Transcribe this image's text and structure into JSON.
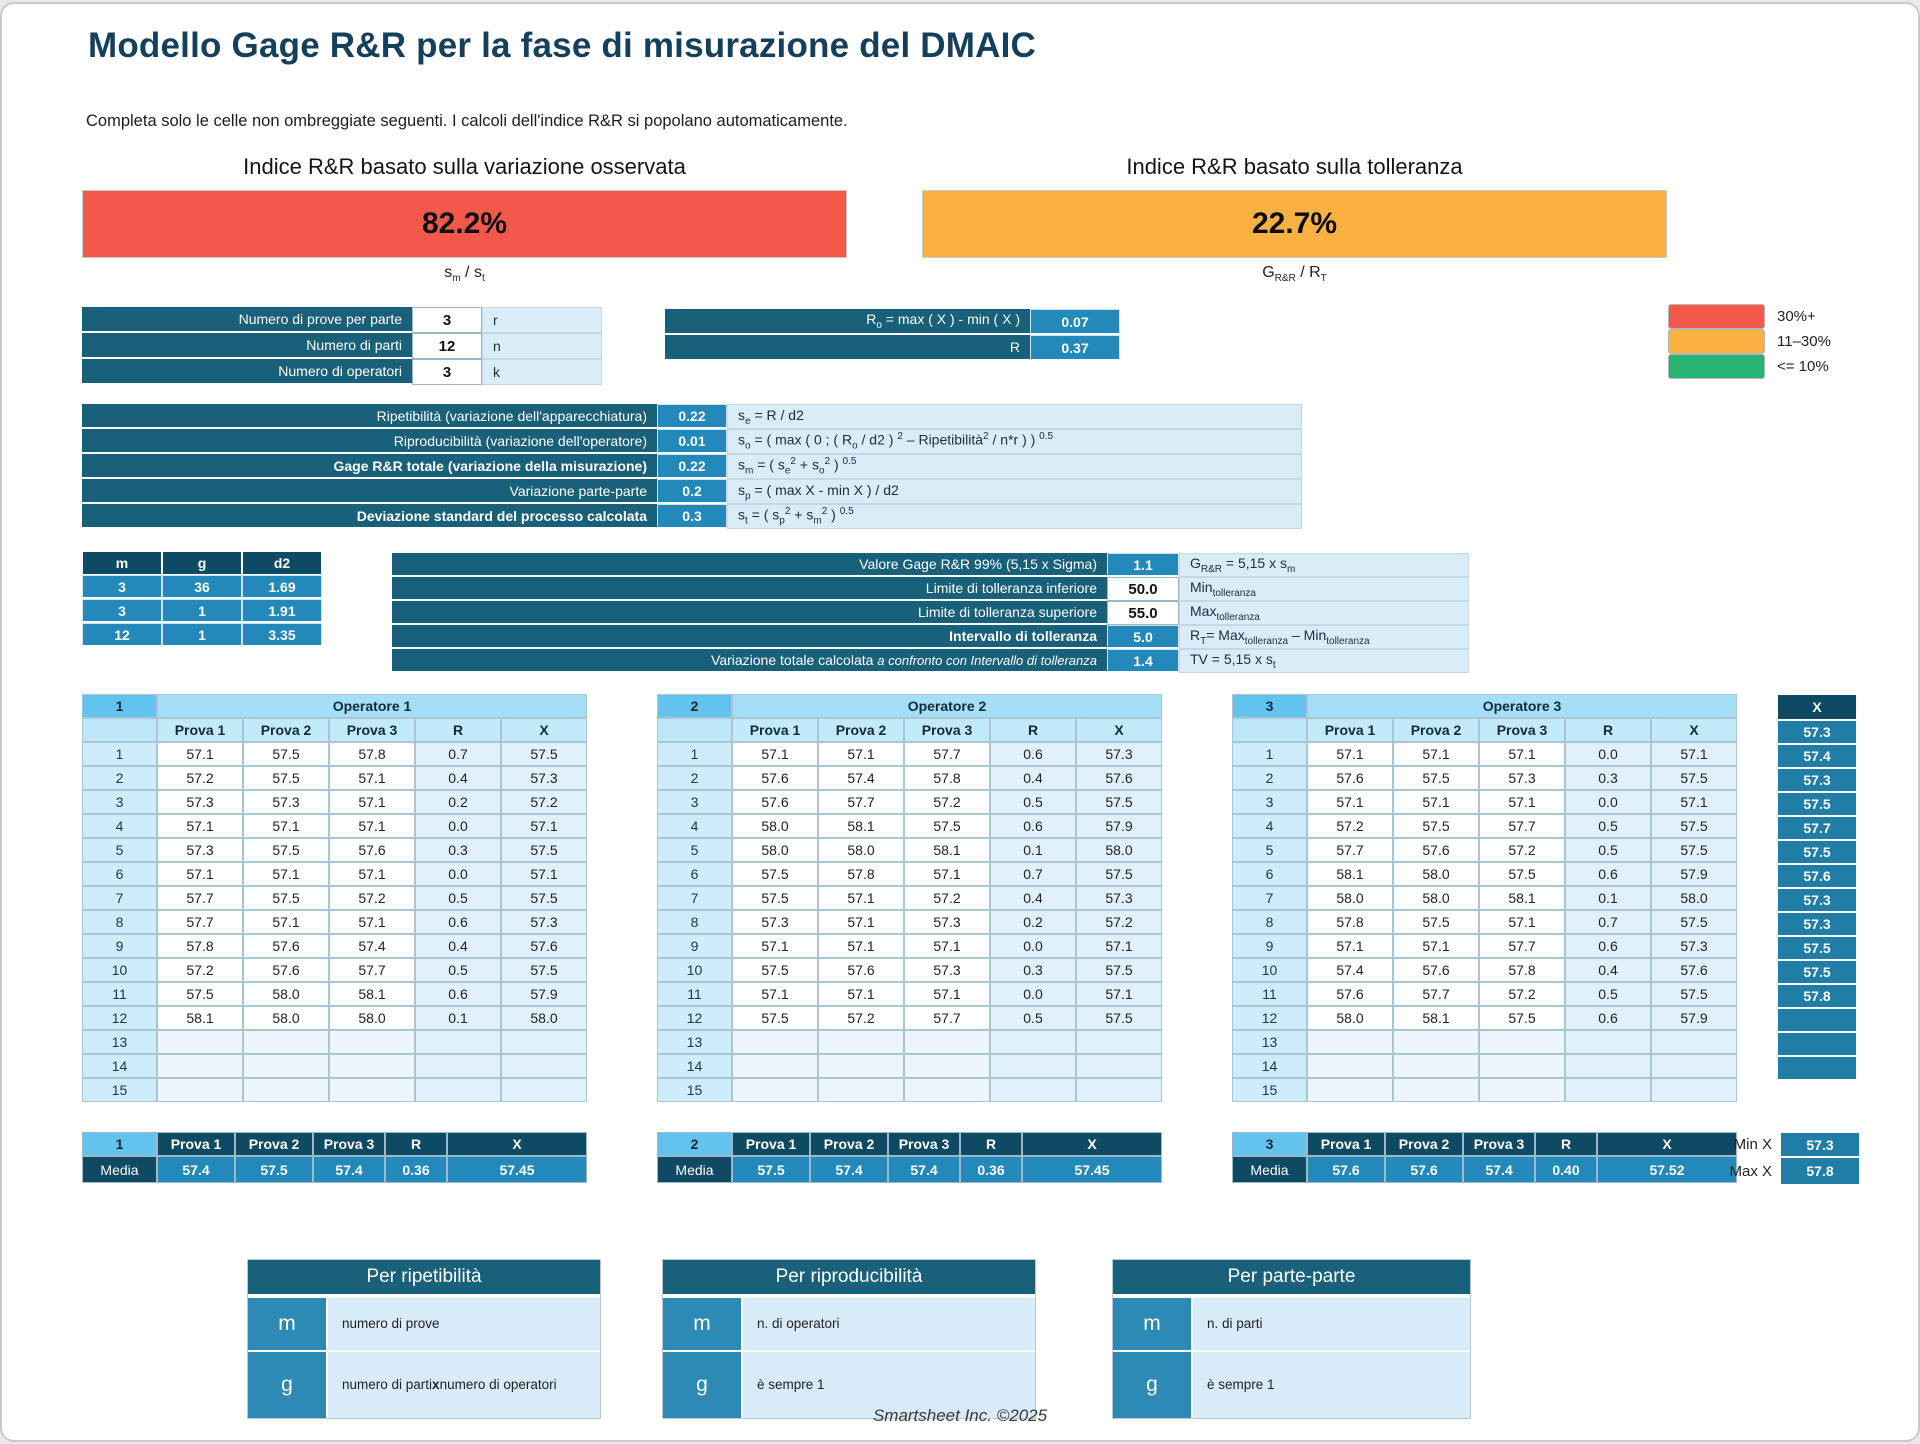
{
  "page": {
    "title": "Modello Gage R&R per la fase di misurazione del DMAIC",
    "subtitle": "Completa solo le celle non ombreggiate seguenti.  I calcoli dell'indice R&R si popolano automaticamente.",
    "footer": "Smartsheet Inc. ©2025"
  },
  "banners": {
    "observed": {
      "label": "Indice R&R basato sulla variazione osservata",
      "value": "82.2%",
      "formula_html": "s<sub>m</sub> / s<sub>t</sub>",
      "color": "#f2594b"
    },
    "tolerance": {
      "label": "Indice R&R basato sulla tolleranza",
      "value": "22.7%",
      "formula_html": "G<sub>R&amp;R</sub> / R<sub>T</sub>",
      "color": "#fbb042"
    }
  },
  "legend": [
    {
      "color": "#f2594b",
      "label": "30%+"
    },
    {
      "color": "#fbb042",
      "label": "11–30%"
    },
    {
      "color": "#27b371",
      "label": "<= 10%"
    }
  ],
  "counts": [
    {
      "label": "Numero di prove per parte",
      "value": "3",
      "symbol": "r"
    },
    {
      "label": "Numero di parti",
      "value": "12",
      "symbol": "n"
    },
    {
      "label": "Numero di operatori",
      "value": "3",
      "symbol": "k"
    }
  ],
  "ranges": [
    {
      "label_html": "R<sub>o</sub> = max ( X ) - min ( X )",
      "value": "0.07"
    },
    {
      "label_html": "R",
      "value": "0.37"
    }
  ],
  "variation": [
    {
      "label": "Ripetibilità (variazione dell'apparecchiatura)",
      "bold": false,
      "value": "0.22",
      "formula_html": "s<sub>e</sub> = R / d2"
    },
    {
      "label": "Riproducibilità (variazione dell'operatore)",
      "bold": false,
      "value": "0.01",
      "formula_html": "s<sub>o</sub> = ( max ( 0 ; ( R<sub>o</sub> / d2 ) <sup>2</sup> – Ripetibilità<sup>2</sup> / n*r ) ) <sup>0.5</sup>"
    },
    {
      "label": "Gage R&R totale (variazione della misurazione)",
      "bold": true,
      "value": "0.22",
      "formula_html": "s<sub>m</sub> = ( s<sub>e</sub><sup>2</sup> + s<sub>o</sub><sup>2</sup> ) <sup>0.5</sup>"
    },
    {
      "label": "Variazione parte-parte",
      "bold": false,
      "value": "0.2",
      "formula_html": "s<sub>p</sub> = ( max X - min X ) / d2"
    },
    {
      "label": "Deviazione standard del processo calcolata",
      "bold": true,
      "value": "0.3",
      "formula_html": "s<sub>t</sub> = ( s<sub>p</sub><sup>2</sup> + s<sub>m</sub><sup>2</sup> ) <sup>0.5</sup>"
    }
  ],
  "d2_table": {
    "headers": [
      "m",
      "g",
      "d2"
    ],
    "rows": [
      [
        "3",
        "36",
        "1.69"
      ],
      [
        "3",
        "1",
        "1.91"
      ],
      [
        "12",
        "1",
        "3.35"
      ]
    ]
  },
  "tolerance_table": [
    {
      "label_html": "Valore Gage R&R 99% (5,15 x Sigma)",
      "bold": false,
      "value": "1.1",
      "editable": false,
      "formula_html": "G<sub>R&amp;R</sub> = 5,15 x s<sub>m</sub>"
    },
    {
      "label_html": "Limite di tolleranza inferiore",
      "bold": false,
      "value": "50.0",
      "editable": true,
      "formula_html": "Min<sub>tolleranza</sub>"
    },
    {
      "label_html": "Limite di tolleranza superiore",
      "bold": false,
      "value": "55.0",
      "editable": true,
      "formula_html": "Max<sub>tolleranza</sub>"
    },
    {
      "label_html": "Intervallo di tolleranza",
      "bold": true,
      "value": "5.0",
      "editable": false,
      "formula_html": "R<sub>T</sub>= Max<sub>tolleranza</sub> – Min<sub>tolleranza</sub>"
    },
    {
      "label_html": "Variazione totale calcolata <i>a confronto con Intervallo di tolleranza</i>",
      "bold": false,
      "value": "1.4",
      "editable": false,
      "formula_html": "TV = 5,15 x s<sub>t</sub>"
    }
  ],
  "op_col_headers": [
    "Prova 1",
    "Prova 2",
    "Prova 3",
    "R",
    "X"
  ],
  "media_label": "Media",
  "operators": [
    {
      "num": "1",
      "name": "Operatore 1",
      "rows": [
        [
          "1",
          "57.1",
          "57.5",
          "57.8",
          "0.7",
          "57.5"
        ],
        [
          "2",
          "57.2",
          "57.5",
          "57.1",
          "0.4",
          "57.3"
        ],
        [
          "3",
          "57.3",
          "57.3",
          "57.1",
          "0.2",
          "57.2"
        ],
        [
          "4",
          "57.1",
          "57.1",
          "57.1",
          "0.0",
          "57.1"
        ],
        [
          "5",
          "57.3",
          "57.5",
          "57.6",
          "0.3",
          "57.5"
        ],
        [
          "6",
          "57.1",
          "57.1",
          "57.1",
          "0.0",
          "57.1"
        ],
        [
          "7",
          "57.7",
          "57.5",
          "57.2",
          "0.5",
          "57.5"
        ],
        [
          "8",
          "57.7",
          "57.1",
          "57.1",
          "0.6",
          "57.3"
        ],
        [
          "9",
          "57.8",
          "57.6",
          "57.4",
          "0.4",
          "57.6"
        ],
        [
          "10",
          "57.2",
          "57.6",
          "57.7",
          "0.5",
          "57.5"
        ],
        [
          "11",
          "57.5",
          "58.0",
          "58.1",
          "0.6",
          "57.9"
        ],
        [
          "12",
          "58.1",
          "58.0",
          "58.0",
          "0.1",
          "58.0"
        ],
        [
          "13",
          "",
          "",
          "",
          "",
          ""
        ],
        [
          "14",
          "",
          "",
          "",
          "",
          ""
        ],
        [
          "15",
          "",
          "",
          "",
          "",
          ""
        ]
      ],
      "media": [
        "57.4",
        "57.5",
        "57.4",
        "0.36",
        "57.45"
      ]
    },
    {
      "num": "2",
      "name": "Operatore 2",
      "rows": [
        [
          "1",
          "57.1",
          "57.1",
          "57.7",
          "0.6",
          "57.3"
        ],
        [
          "2",
          "57.6",
          "57.4",
          "57.8",
          "0.4",
          "57.6"
        ],
        [
          "3",
          "57.6",
          "57.7",
          "57.2",
          "0.5",
          "57.5"
        ],
        [
          "4",
          "58.0",
          "58.1",
          "57.5",
          "0.6",
          "57.9"
        ],
        [
          "5",
          "58.0",
          "58.0",
          "58.1",
          "0.1",
          "58.0"
        ],
        [
          "6",
          "57.5",
          "57.8",
          "57.1",
          "0.7",
          "57.5"
        ],
        [
          "7",
          "57.5",
          "57.1",
          "57.2",
          "0.4",
          "57.3"
        ],
        [
          "8",
          "57.3",
          "57.1",
          "57.3",
          "0.2",
          "57.2"
        ],
        [
          "9",
          "57.1",
          "57.1",
          "57.1",
          "0.0",
          "57.1"
        ],
        [
          "10",
          "57.5",
          "57.6",
          "57.3",
          "0.3",
          "57.5"
        ],
        [
          "11",
          "57.1",
          "57.1",
          "57.1",
          "0.0",
          "57.1"
        ],
        [
          "12",
          "57.5",
          "57.2",
          "57.7",
          "0.5",
          "57.5"
        ],
        [
          "13",
          "",
          "",
          "",
          "",
          ""
        ],
        [
          "14",
          "",
          "",
          "",
          "",
          ""
        ],
        [
          "15",
          "",
          "",
          "",
          "",
          ""
        ]
      ],
      "media": [
        "57.5",
        "57.4",
        "57.4",
        "0.36",
        "57.45"
      ]
    },
    {
      "num": "3",
      "name": "Operatore 3",
      "rows": [
        [
          "1",
          "57.1",
          "57.1",
          "57.1",
          "0.0",
          "57.1"
        ],
        [
          "2",
          "57.6",
          "57.5",
          "57.3",
          "0.3",
          "57.5"
        ],
        [
          "3",
          "57.1",
          "57.1",
          "57.1",
          "0.0",
          "57.1"
        ],
        [
          "4",
          "57.2",
          "57.5",
          "57.7",
          "0.5",
          "57.5"
        ],
        [
          "5",
          "57.7",
          "57.6",
          "57.2",
          "0.5",
          "57.5"
        ],
        [
          "6",
          "58.1",
          "58.0",
          "57.5",
          "0.6",
          "57.9"
        ],
        [
          "7",
          "58.0",
          "58.0",
          "58.1",
          "0.1",
          "58.0"
        ],
        [
          "8",
          "57.8",
          "57.5",
          "57.1",
          "0.7",
          "57.5"
        ],
        [
          "9",
          "57.1",
          "57.1",
          "57.7",
          "0.6",
          "57.3"
        ],
        [
          "10",
          "57.4",
          "57.6",
          "57.8",
          "0.4",
          "57.6"
        ],
        [
          "11",
          "57.6",
          "57.7",
          "57.2",
          "0.5",
          "57.5"
        ],
        [
          "12",
          "58.0",
          "58.1",
          "57.5",
          "0.6",
          "57.9"
        ],
        [
          "13",
          "",
          "",
          "",
          "",
          ""
        ],
        [
          "14",
          "",
          "",
          "",
          "",
          ""
        ],
        [
          "15",
          "",
          "",
          "",
          "",
          ""
        ]
      ],
      "media": [
        "57.6",
        "57.6",
        "57.4",
        "0.40",
        "57.52"
      ]
    }
  ],
  "grand_x": {
    "header": "X",
    "values": [
      "57.3",
      "57.4",
      "57.3",
      "57.5",
      "57.7",
      "57.5",
      "57.6",
      "57.3",
      "57.3",
      "57.5",
      "57.5",
      "57.8",
      "",
      "",
      ""
    ]
  },
  "min_max": [
    {
      "label": "Min X",
      "value": "57.3"
    },
    {
      "label": "Max X",
      "value": "57.8"
    }
  ],
  "explain_boxes": [
    {
      "title": "Per ripetibilità",
      "rows": [
        {
          "sym": "m",
          "text_html": "numero di prove"
        },
        {
          "sym": "g",
          "text_html": "numero di parti<br><b>x</b> numero di operatori"
        }
      ]
    },
    {
      "title": "Per riproducibilità",
      "rows": [
        {
          "sym": "m",
          "text_html": "n. di operatori"
        },
        {
          "sym": "g",
          "text_html": "è sempre 1"
        }
      ]
    },
    {
      "title": "Per parte-parte",
      "rows": [
        {
          "sym": "m",
          "text_html": "n. di parti"
        },
        {
          "sym": "g",
          "text_html": "è sempre 1"
        }
      ]
    }
  ]
}
